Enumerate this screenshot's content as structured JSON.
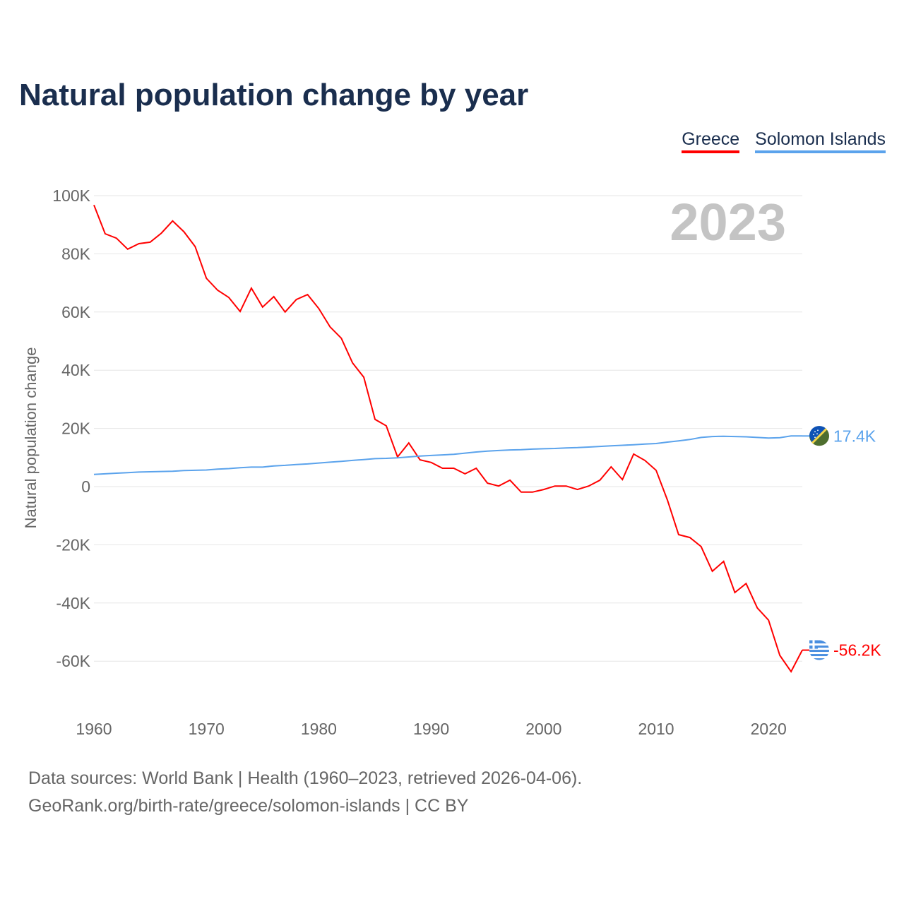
{
  "title": "Natural population change by year",
  "year_label": "2023",
  "footer": {
    "line1": "Data sources: World Bank | Health (1960–2023, retrieved 2026-04-06).",
    "line2": "GeoRank.org/birth-rate/greece/solomon-islands | CC BY"
  },
  "chart_data": {
    "type": "line",
    "title": "Natural population change by year",
    "ylabel": "Natural population change",
    "xlabel": "",
    "xlim": [
      1960,
      2023
    ],
    "ylim": [
      -75000,
      100000
    ],
    "x_ticks": [
      1960,
      1970,
      1980,
      1990,
      2000,
      2010,
      2020
    ],
    "y_ticks": [
      {
        "v": 100000,
        "l": "100K"
      },
      {
        "v": 80000,
        "l": "80K"
      },
      {
        "v": 60000,
        "l": "60K"
      },
      {
        "v": 40000,
        "l": "40K"
      },
      {
        "v": 20000,
        "l": "20K"
      },
      {
        "v": 0,
        "l": "0"
      },
      {
        "v": -20000,
        "l": "-20K"
      },
      {
        "v": -40000,
        "l": "-40K"
      },
      {
        "v": -60000,
        "l": "-60K"
      }
    ],
    "grid": true,
    "legend": "top-right",
    "series": [
      {
        "name": "Greece",
        "color": "#ff0000",
        "end_label": "-56.2K",
        "flag": "greece-flag",
        "values": [
          96800,
          86900,
          85400,
          81600,
          83500,
          84000,
          87100,
          91300,
          87600,
          82500,
          71600,
          67500,
          65000,
          60200,
          68200,
          61700,
          65300,
          60000,
          64300,
          66000,
          61200,
          54900,
          51000,
          42500,
          37600,
          23100,
          20900,
          10200,
          15000,
          9200,
          8300,
          6300,
          6300,
          4400,
          6300,
          1200,
          200,
          2200,
          -1900,
          -1900,
          -1000,
          200,
          200,
          -1000,
          200,
          2200,
          6800,
          2400,
          11200,
          9000,
          5600,
          -4600,
          -16500,
          -17500,
          -20600,
          -29100,
          -25700,
          -36400,
          -33300,
          -41700,
          -45900,
          -58000,
          -63600,
          -56200
        ]
      },
      {
        "name": "Solomon Islands",
        "color": "#5ba3ec",
        "end_label": "17.4K",
        "flag": "solomon-islands-flag",
        "values": [
          4200,
          4400,
          4600,
          4800,
          5000,
          5100,
          5200,
          5300,
          5500,
          5600,
          5700,
          6000,
          6200,
          6500,
          6700,
          6700,
          7100,
          7300,
          7600,
          7800,
          8100,
          8400,
          8700,
          9000,
          9300,
          9600,
          9700,
          9900,
          10200,
          10500,
          10700,
          10900,
          11100,
          11500,
          11900,
          12200,
          12400,
          12600,
          12700,
          12900,
          13000,
          13100,
          13300,
          13400,
          13600,
          13800,
          14000,
          14200,
          14400,
          14600,
          14800,
          15300,
          15700,
          16200,
          16900,
          17200,
          17300,
          17200,
          17100,
          16900,
          16700,
          16800,
          17400,
          17400
        ]
      }
    ]
  }
}
